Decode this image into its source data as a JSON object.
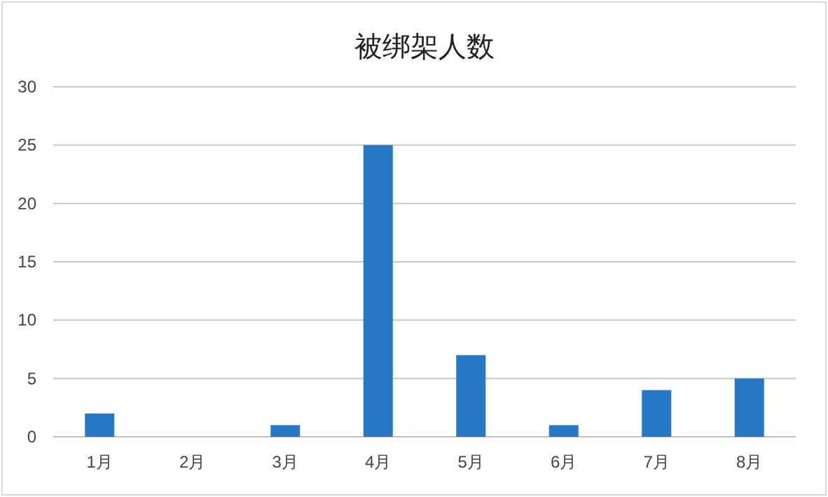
{
  "chart_data": {
    "type": "bar",
    "title": "被绑架人数",
    "categories": [
      "1月",
      "2月",
      "3月",
      "4月",
      "5月",
      "6月",
      "7月",
      "8月"
    ],
    "values": [
      2,
      0,
      1,
      25,
      7,
      1,
      4,
      5
    ],
    "color": "#2878c8",
    "ylim": [
      0,
      30
    ],
    "yticks": [
      0,
      5,
      10,
      15,
      20,
      25,
      30
    ],
    "grid": "y"
  }
}
